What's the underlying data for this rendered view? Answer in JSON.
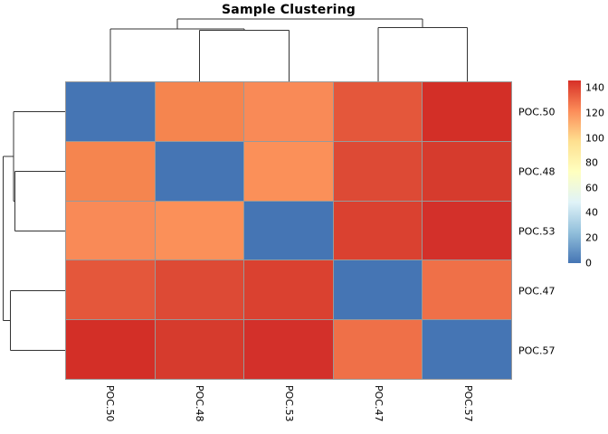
{
  "title": "Sample Clustering",
  "chart_data": {
    "type": "heatmap",
    "title": "Sample Clustering",
    "rows": [
      "POC.50",
      "POC.48",
      "POC.53",
      "POC.47",
      "POC.57"
    ],
    "columns": [
      "POC.50",
      "POC.48",
      "POC.53",
      "POC.47",
      "POC.57"
    ],
    "matrix_values": [
      [
        0,
        126,
        124,
        135,
        146
      ],
      [
        126,
        0,
        121,
        139,
        143
      ],
      [
        124,
        121,
        0,
        141,
        145
      ],
      [
        135,
        139,
        141,
        0,
        130
      ],
      [
        146,
        143,
        145,
        130,
        0
      ]
    ],
    "cell_colors": [
      [
        "#4575B4",
        "#F5854F",
        "#F98A57",
        "#E4573B",
        "#D32F27"
      ],
      [
        "#F5854F",
        "#4575B4",
        "#FB9059",
        "#DD4A35",
        "#D63B2D"
      ],
      [
        "#F98A57",
        "#FB9059",
        "#4575B4",
        "#DA4130",
        "#D3302A"
      ],
      [
        "#E4573B",
        "#DD4A35",
        "#DA4130",
        "#4575B4",
        "#EF7048"
      ],
      [
        "#D32F27",
        "#D63B2D",
        "#D3302A",
        "#EF7048",
        "#4575B4"
      ]
    ],
    "row_dendrogram_topology": "((POC.50,(POC.48,POC.53)),(POC.47,POC.57))",
    "column_dendrogram_topology": "((POC.50,(POC.48,POC.53)),(POC.47,POC.57))",
    "legend_position": "right",
    "colorbar": {
      "min": 0,
      "max": 146,
      "ticks": [
        140,
        120,
        100,
        80,
        60,
        40,
        20,
        0
      ],
      "palette_top_to_bottom": [
        "#D73027",
        "#FC8D59",
        "#FEE090",
        "#FFFFBF",
        "#E0F3F8",
        "#91BFDB",
        "#4575B4"
      ]
    }
  },
  "colors": {
    "grid_line": "#999999",
    "dendrogram_line": "#333333",
    "background": "#ffffff",
    "diagonal_blue": "#4575B4",
    "max_red": "#D73027"
  }
}
